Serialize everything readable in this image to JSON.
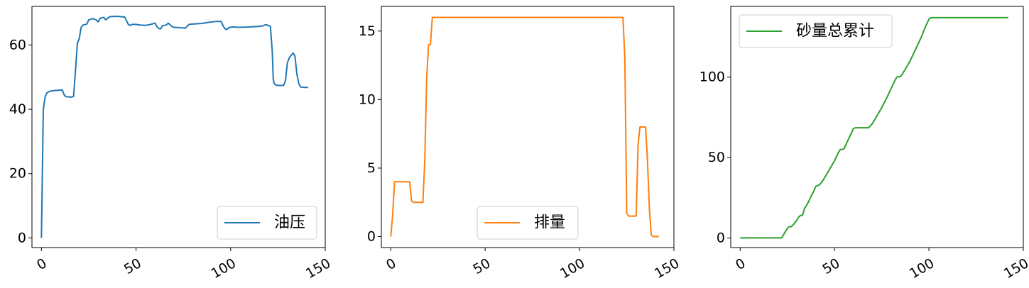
{
  "chart_data": [
    {
      "type": "line",
      "xlim": [
        -5,
        150
      ],
      "ylim": [
        -3,
        72
      ],
      "xticks": [
        0,
        50,
        100,
        150
      ],
      "yticks": [
        0,
        20,
        40,
        60
      ],
      "legend_position": "lower right",
      "series": [
        {
          "name": "油压",
          "color": "#1f77b4",
          "points": [
            [
              0,
              0
            ],
            [
              1,
              40
            ],
            [
              2,
              44
            ],
            [
              3,
              45.2
            ],
            [
              5,
              45.7
            ],
            [
              8,
              45.9
            ],
            [
              11,
              46
            ],
            [
              12,
              44.5
            ],
            [
              13,
              43.9
            ],
            [
              16,
              43.8
            ],
            [
              17,
              44
            ],
            [
              18,
              52
            ],
            [
              19,
              60.5
            ],
            [
              20,
              62
            ],
            [
              21,
              65.5
            ],
            [
              22,
              66.2
            ],
            [
              24,
              66.5
            ],
            [
              25,
              67.8
            ],
            [
              27,
              68.2
            ],
            [
              29,
              67.8
            ],
            [
              30,
              67.2
            ],
            [
              31,
              68.3
            ],
            [
              33,
              68.6
            ],
            [
              34,
              67.8
            ],
            [
              35,
              68.3
            ],
            [
              36,
              68.8
            ],
            [
              40,
              68.9
            ],
            [
              44,
              68.7
            ],
            [
              45,
              67.5
            ],
            [
              46,
              66.3
            ],
            [
              47,
              66.1
            ],
            [
              48,
              66.4
            ],
            [
              50,
              66.4
            ],
            [
              52,
              66.2
            ],
            [
              55,
              66.1
            ],
            [
              57,
              66.3
            ],
            [
              59,
              66.6
            ],
            [
              60,
              66.8
            ],
            [
              61,
              65.8
            ],
            [
              62,
              65.1
            ],
            [
              63,
              65
            ],
            [
              64,
              66
            ],
            [
              66,
              66.2
            ],
            [
              67,
              66.8
            ],
            [
              68,
              66.3
            ],
            [
              69,
              65.7
            ],
            [
              70,
              65.5
            ],
            [
              75,
              65.3
            ],
            [
              76,
              65.2
            ],
            [
              77,
              65.8
            ],
            [
              78,
              66.4
            ],
            [
              80,
              66.5
            ],
            [
              85,
              66.7
            ],
            [
              88,
              67
            ],
            [
              92,
              67.3
            ],
            [
              95,
              67.3
            ],
            [
              96,
              66
            ],
            [
              97,
              65
            ],
            [
              98,
              64.8
            ],
            [
              99,
              65.4
            ],
            [
              101,
              65.6
            ],
            [
              105,
              65.5
            ],
            [
              110,
              65.6
            ],
            [
              115,
              65.8
            ],
            [
              117,
              65.9
            ],
            [
              118,
              66.2
            ],
            [
              119,
              66.3
            ],
            [
              120,
              66
            ],
            [
              121,
              65.8
            ],
            [
              122,
              58
            ],
            [
              122.5,
              49.5
            ],
            [
              123,
              48
            ],
            [
              124,
              47.5
            ],
            [
              126,
              47.4
            ],
            [
              128,
              47.4
            ],
            [
              129,
              49
            ],
            [
              130,
              54.5
            ],
            [
              131,
              56
            ],
            [
              132,
              56.8
            ],
            [
              133,
              57.5
            ],
            [
              134,
              56.5
            ],
            [
              135,
              51
            ],
            [
              136,
              48
            ],
            [
              137,
              46.9
            ],
            [
              139,
              46.8
            ],
            [
              141,
              46.8
            ]
          ]
        }
      ]
    },
    {
      "type": "line",
      "xlim": [
        -5,
        150
      ],
      "ylim": [
        -0.8,
        16.8
      ],
      "xticks": [
        0,
        50,
        100,
        150
      ],
      "yticks": [
        0,
        5,
        10,
        15
      ],
      "legend_position": "lower center",
      "series": [
        {
          "name": "排量",
          "color": "#ff7f0e",
          "points": [
            [
              0,
              0
            ],
            [
              1,
              1.6
            ],
            [
              2,
              4
            ],
            [
              5,
              4
            ],
            [
              8,
              4
            ],
            [
              10,
              4
            ],
            [
              11,
              2.6
            ],
            [
              12,
              2.5
            ],
            [
              15,
              2.5
            ],
            [
              17,
              2.5
            ],
            [
              18,
              5.5
            ],
            [
              19,
              11.5
            ],
            [
              20,
              14
            ],
            [
              21,
              14
            ],
            [
              22,
              16
            ],
            [
              50,
              16
            ],
            [
              100,
              16
            ],
            [
              123,
              16
            ],
            [
              124,
              13
            ],
            [
              125,
              1.7
            ],
            [
              126,
              1.5
            ],
            [
              130,
              1.5
            ],
            [
              131,
              6.7
            ],
            [
              132,
              8
            ],
            [
              135,
              8
            ],
            [
              136,
              5.5
            ],
            [
              137,
              2
            ],
            [
              138,
              0.1
            ],
            [
              139,
              0
            ],
            [
              140,
              0
            ],
            [
              142,
              0
            ]
          ]
        }
      ]
    },
    {
      "type": "line",
      "xlim": [
        -5,
        150
      ],
      "ylim": [
        -6,
        144
      ],
      "xticks": [
        0,
        50,
        100,
        150
      ],
      "yticks": [
        0,
        50,
        100
      ],
      "legend_position": "upper left",
      "series": [
        {
          "name": "砂量总累计",
          "color": "#2ca02c",
          "points": [
            [
              0,
              0
            ],
            [
              10,
              0
            ],
            [
              20,
              0
            ],
            [
              22,
              0
            ],
            [
              23,
              2
            ],
            [
              25,
              6
            ],
            [
              26,
              7
            ],
            [
              27,
              7
            ],
            [
              28,
              8
            ],
            [
              30,
              11
            ],
            [
              31,
              13
            ],
            [
              32,
              14
            ],
            [
              33,
              14
            ],
            [
              34,
              18
            ],
            [
              36,
              22
            ],
            [
              38,
              27
            ],
            [
              39,
              29
            ],
            [
              40,
              32
            ],
            [
              41,
              32.5
            ],
            [
              42,
              33
            ],
            [
              44,
              36
            ],
            [
              46,
              40
            ],
            [
              48,
              44
            ],
            [
              50,
              48
            ],
            [
              52,
              53
            ],
            [
              53,
              55
            ],
            [
              54,
              55
            ],
            [
              55,
              55.5
            ],
            [
              56,
              58
            ],
            [
              58,
              63
            ],
            [
              60,
              68
            ],
            [
              61,
              68.5
            ],
            [
              64,
              68.5
            ],
            [
              68,
              68.5
            ],
            [
              70,
              71
            ],
            [
              72,
              75
            ],
            [
              75,
              81
            ],
            [
              78,
              88
            ],
            [
              80,
              93
            ],
            [
              82,
              98
            ],
            [
              83,
              100
            ],
            [
              85,
              100.5
            ],
            [
              86,
              102
            ],
            [
              88,
              106
            ],
            [
              90,
              110
            ],
            [
              92,
              115
            ],
            [
              94,
              120
            ],
            [
              96,
              125
            ],
            [
              98,
              131
            ],
            [
              100,
              136
            ],
            [
              101,
              137
            ],
            [
              105,
              137
            ],
            [
              115,
              137
            ],
            [
              120,
              137
            ],
            [
              130,
              137
            ],
            [
              140,
              137
            ],
            [
              142,
              137
            ]
          ]
        }
      ]
    }
  ]
}
